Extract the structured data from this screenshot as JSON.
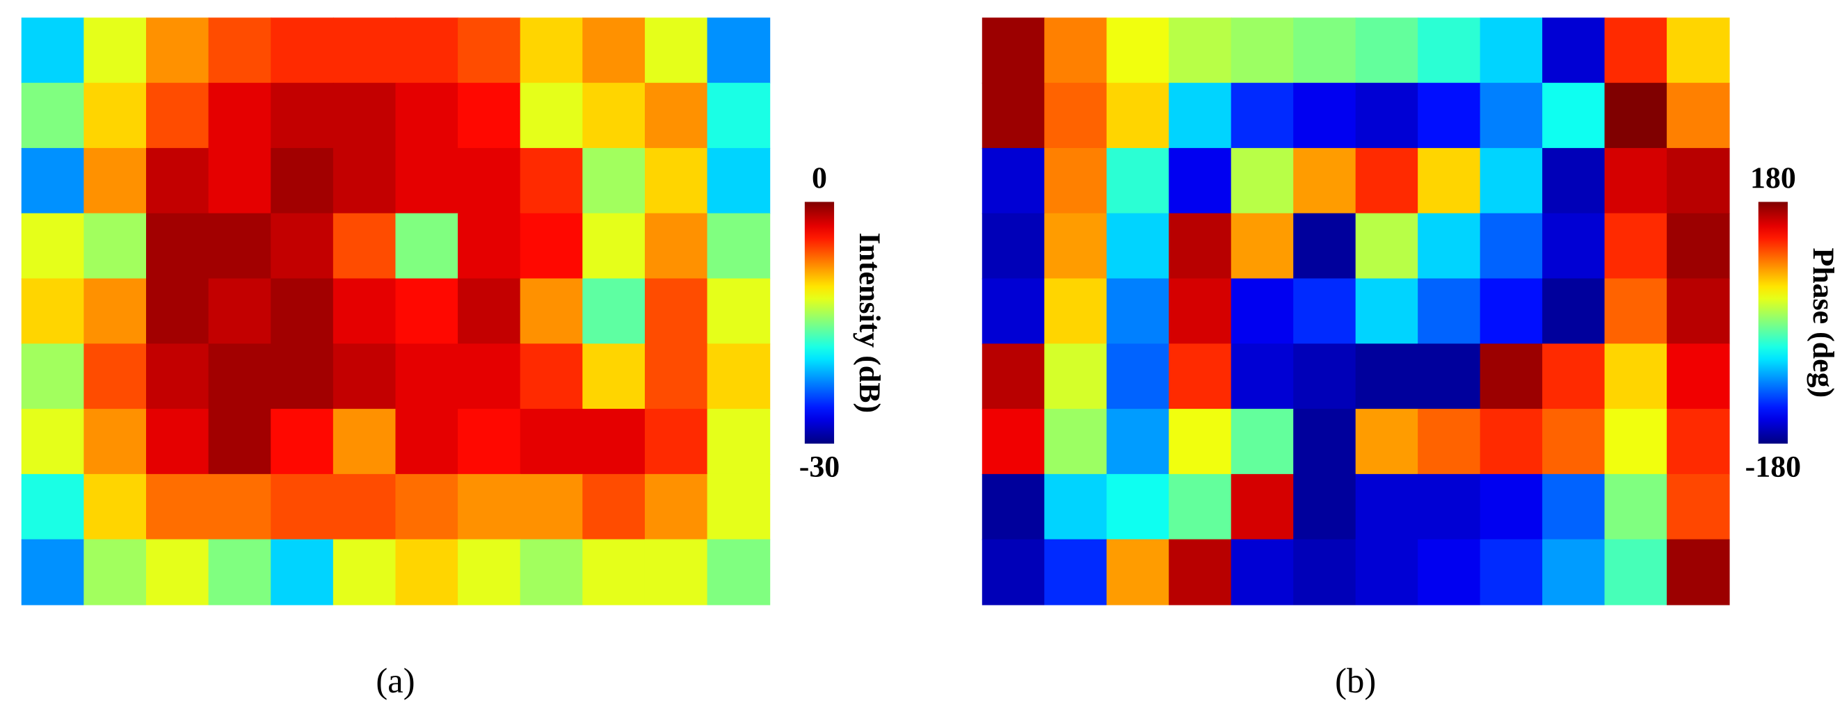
{
  "chart_data": [
    {
      "type": "heatmap",
      "caption": "(a)",
      "colorbar_label": "Intensity (dB)",
      "clim": [
        -30,
        0
      ],
      "cticks": [
        -30,
        0
      ],
      "colormap": "jet",
      "values": [
        [
          -20,
          -12,
          -8,
          -6,
          -5,
          -5,
          -5,
          -6,
          -10,
          -8,
          -12,
          -22
        ],
        [
          -15,
          -10,
          -6,
          -3,
          -2,
          -2,
          -3,
          -4,
          -12,
          -10,
          -8,
          -18
        ],
        [
          -22,
          -8,
          -2,
          -3,
          -1,
          -2,
          -3,
          -3,
          -5,
          -14,
          -10,
          -20
        ],
        [
          -12,
          -14,
          -1,
          -1,
          -2,
          -6,
          -15,
          -3,
          -4,
          -12,
          -8,
          -15
        ],
        [
          -10,
          -8,
          -1,
          -2,
          -1,
          -3,
          -4,
          -2,
          -8,
          -16,
          -6,
          -12
        ],
        [
          -14,
          -6,
          -2,
          -1,
          -1,
          -2,
          -3,
          -3,
          -5,
          -10,
          -6,
          -10
        ],
        [
          -12,
          -8,
          -3,
          -1,
          -4,
          -8,
          -3,
          -4,
          -3,
          -3,
          -5,
          -12
        ],
        [
          -18,
          -10,
          -7,
          -7,
          -6,
          -6,
          -7,
          -8,
          -8,
          -6,
          -8,
          -12
        ],
        [
          -22,
          -14,
          -12,
          -15,
          -20,
          -12,
          -10,
          -12,
          -14,
          -12,
          -12,
          -15
        ]
      ]
    },
    {
      "type": "heatmap",
      "caption": "(b)",
      "colorbar_label": "Phase (deg)",
      "clim": [
        -180,
        180
      ],
      "cticks": [
        -180,
        180
      ],
      "colormap": "jet",
      "values": [
        [
          170,
          90,
          40,
          20,
          10,
          0,
          -10,
          -30,
          -60,
          -150,
          120,
          60
        ],
        [
          170,
          100,
          60,
          -60,
          -120,
          -140,
          -150,
          -130,
          -90,
          -40,
          180,
          90
        ],
        [
          -150,
          90,
          -30,
          -140,
          20,
          80,
          120,
          60,
          -60,
          -160,
          150,
          160
        ],
        [
          -160,
          80,
          -60,
          160,
          80,
          -170,
          20,
          -60,
          -100,
          -150,
          120,
          170
        ],
        [
          -150,
          60,
          -90,
          150,
          -140,
          -120,
          -60,
          -100,
          -130,
          -170,
          100,
          160
        ],
        [
          160,
          30,
          -100,
          120,
          -150,
          -160,
          -170,
          -170,
          170,
          120,
          60,
          140
        ],
        [
          140,
          10,
          -80,
          40,
          -10,
          -170,
          80,
          100,
          120,
          100,
          40,
          120
        ],
        [
          -170,
          -60,
          -40,
          -10,
          150,
          -170,
          -150,
          -150,
          -140,
          -100,
          0,
          110
        ],
        [
          -160,
          -120,
          80,
          160,
          -150,
          -160,
          -150,
          -140,
          -120,
          -80,
          -20,
          170
        ]
      ]
    }
  ]
}
